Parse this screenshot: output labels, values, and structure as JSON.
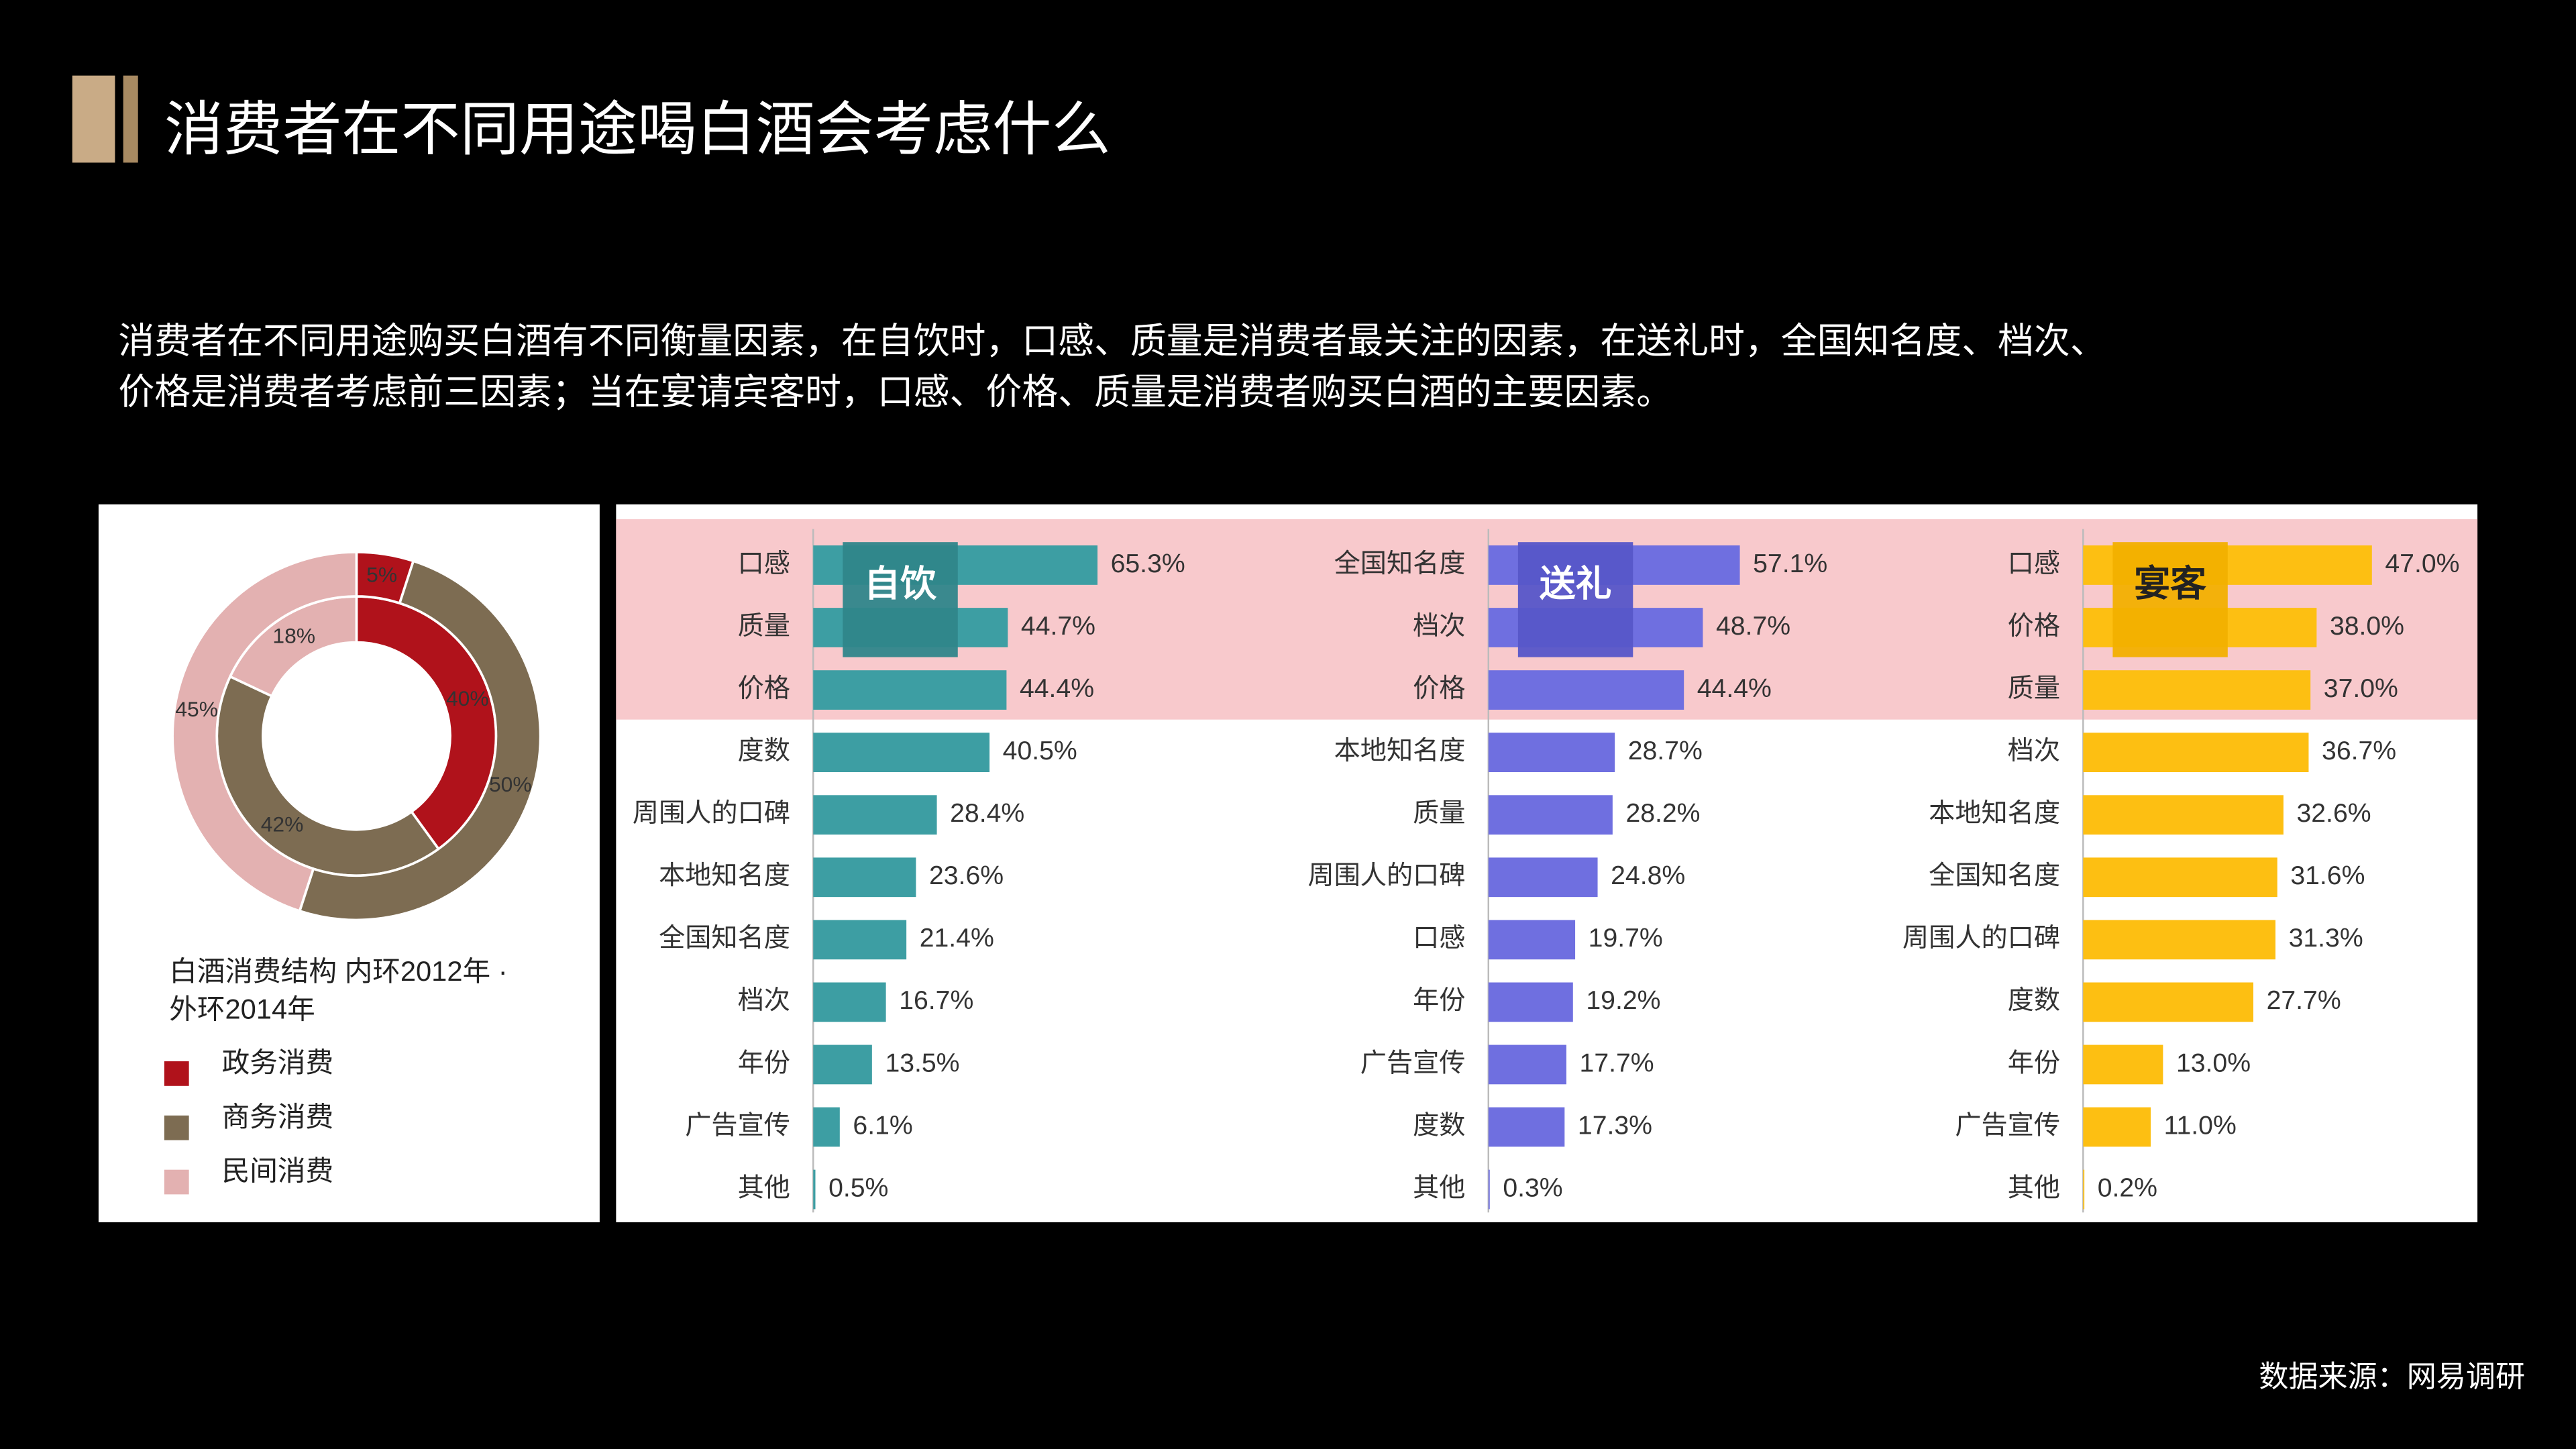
{
  "title": "消费者在不同用途喝白酒会考虑什么",
  "description": [
    "消费者在不同用途购买白酒有不同衡量因素，在自饮时，口感、质量是消费者最关注的因素，在送礼时，全国知名度、档次、",
    "价格是消费者考虑前三因素；当在宴请宾客时，口感、价格、质量是消费者购买白酒的主要因素。"
  ],
  "source": "数据来源：网易调研",
  "chart_data": [
    {
      "type": "donut",
      "title": "白酒消费结构 内环2012年 · 外环2014年",
      "categories": [
        "政务消费",
        "商务消费",
        "民间消费"
      ],
      "colors": [
        "#b0121b",
        "#7d6c52",
        "#e3b1b1"
      ],
      "rings": [
        {
          "values": [
            40,
            42,
            18
          ],
          "value_labels": [
            "40%",
            "42%",
            "18%"
          ]
        },
        {
          "values": [
            5,
            50,
            45
          ],
          "value_labels": [
            "5%",
            "50%",
            "45%"
          ]
        }
      ]
    },
    {
      "type": "hbar",
      "title": "自饮",
      "color": "#3d9ea3",
      "categories": [
        "口感",
        "质量",
        "价格",
        "度数",
        "周围人的口碑",
        "本地知名度",
        "全国知名度",
        "档次",
        "年份",
        "广告宣传",
        "其他"
      ],
      "values": [
        65.3,
        44.7,
        44.4,
        40.5,
        28.4,
        23.6,
        21.4,
        16.7,
        13.5,
        6.1,
        0.5
      ],
      "value_labels": [
        "65.3%",
        "44.7%",
        "44.4%",
        "40.5%",
        "28.4%",
        "23.6%",
        "21.4%",
        "16.7%",
        "13.5%",
        "6.1%",
        "0.5%"
      ]
    },
    {
      "type": "hbar",
      "title": "送礼",
      "color": "#6f6fe0",
      "categories": [
        "全国知名度",
        "档次",
        "价格",
        "本地知名度",
        "质量",
        "周围人的口碑",
        "口感",
        "年份",
        "广告宣传",
        "度数",
        "其他"
      ],
      "values": [
        57.1,
        48.7,
        44.4,
        28.7,
        28.2,
        24.8,
        19.7,
        19.2,
        17.7,
        17.3,
        0.3
      ],
      "value_labels": [
        "57.1%",
        "48.7%",
        "44.4%",
        "28.7%",
        "28.2%",
        "24.8%",
        "19.7%",
        "19.2%",
        "17.7%",
        "17.3%",
        "0.3%"
      ]
    },
    {
      "type": "hbar",
      "title": "宴客",
      "color": "#fdbf12",
      "categories": [
        "口感",
        "价格",
        "质量",
        "档次",
        "本地知名度",
        "全国知名度",
        "周围人的口碑",
        "度数",
        "年份",
        "广告宣传",
        "其他"
      ],
      "values": [
        47.0,
        38.0,
        37.0,
        36.7,
        32.6,
        31.6,
        31.3,
        27.7,
        13.0,
        11.0,
        0.2
      ],
      "value_labels": [
        "47.0%",
        "38.0%",
        "37.0%",
        "36.7%",
        "32.6%",
        "31.6%",
        "31.3%",
        "27.7%",
        "13.0%",
        "11.0%",
        "0.2%"
      ]
    }
  ]
}
